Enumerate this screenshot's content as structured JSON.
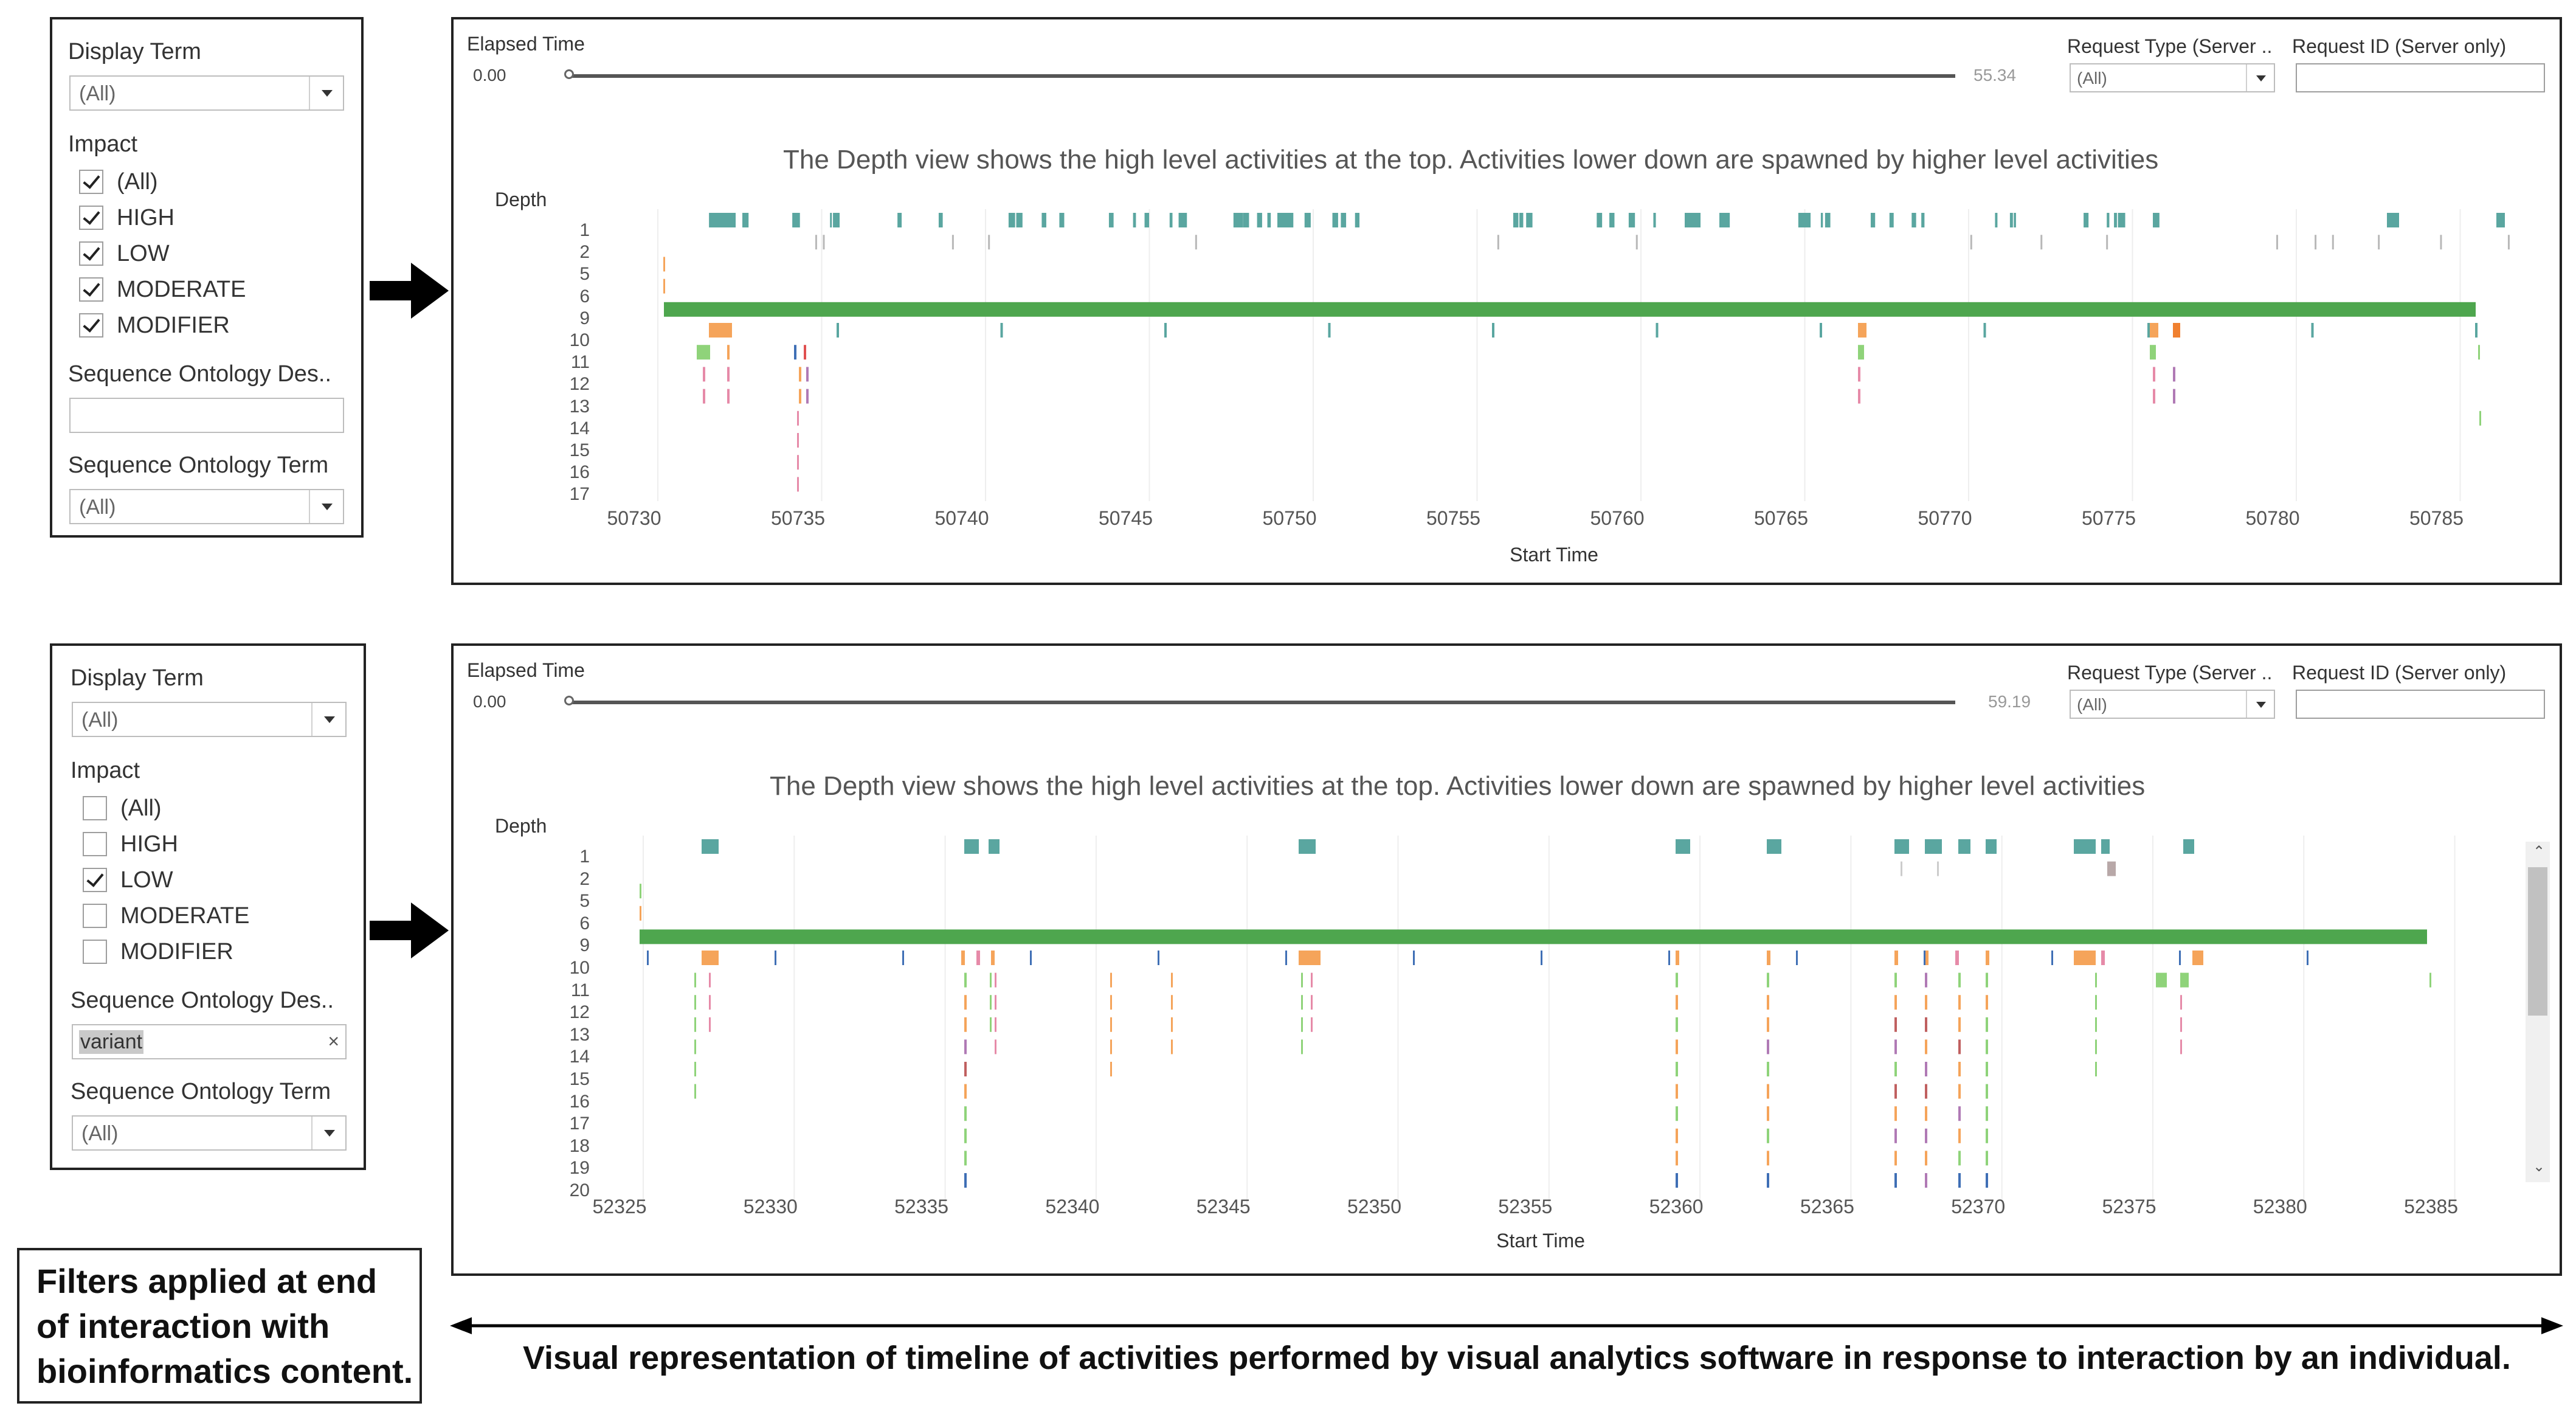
{
  "filters": [
    {
      "display_term_label": "Display Term",
      "display_term_value": "(All)",
      "impact_label": "Impact",
      "impact_options": [
        {
          "label": "(All)",
          "checked": true
        },
        {
          "label": "HIGH",
          "checked": true
        },
        {
          "label": "LOW",
          "checked": true
        },
        {
          "label": "MODERATE",
          "checked": true
        },
        {
          "label": "MODIFIER",
          "checked": true
        }
      ],
      "so_desc_label": "Sequence Ontology Des..",
      "so_desc_value": "",
      "so_term_label": "Sequence Ontology Term",
      "so_term_value": "(All)"
    },
    {
      "display_term_label": "Display Term",
      "display_term_value": "(All)",
      "impact_label": "Impact",
      "impact_options": [
        {
          "label": "(All)",
          "checked": false
        },
        {
          "label": "HIGH",
          "checked": false
        },
        {
          "label": "LOW",
          "checked": true
        },
        {
          "label": "MODERATE",
          "checked": false
        },
        {
          "label": "MODIFIER",
          "checked": false
        }
      ],
      "so_desc_label": "Sequence Ontology Des..",
      "so_desc_value": "variant",
      "so_desc_clear": "×",
      "so_term_label": "Sequence Ontology Term",
      "so_term_value": "(All)"
    }
  ],
  "dashboards": [
    {
      "elapsed_label": "Elapsed Time",
      "elapsed_min": "0.00",
      "elapsed_max": "55.34",
      "request_type_label": "Request Type (Server ..",
      "request_type_value": "(All)",
      "request_id_label": "Request ID (Server only)",
      "subtitle": "The Depth view shows the high level activities at the top. Activities lower down are spawned by higher level activities",
      "depth_title": "Depth",
      "depth_labels": [
        "1",
        "2",
        "5",
        "6",
        "9",
        "10",
        "11",
        "12",
        "13",
        "14",
        "15",
        "16",
        "17"
      ],
      "x_title": "Start Time",
      "x_ticks": [
        "50730",
        "50735",
        "50740",
        "50745",
        "50750",
        "50755",
        "50760",
        "50765",
        "50770",
        "50775",
        "50780",
        "50785"
      ]
    },
    {
      "elapsed_label": "Elapsed Time",
      "elapsed_min": "0.00",
      "elapsed_max": "59.19",
      "request_type_label": "Request Type (Server ..",
      "request_type_value": "(All)",
      "request_id_label": "Request ID (Server only)",
      "subtitle": "The Depth view shows the high level activities at the top. Activities lower down are spawned by higher level activities",
      "depth_title": "Depth",
      "depth_labels": [
        "1",
        "2",
        "5",
        "6",
        "9",
        "10",
        "11",
        "12",
        "13",
        "14",
        "15",
        "16",
        "17",
        "18",
        "19",
        "20"
      ],
      "x_title": "Start Time",
      "x_ticks": [
        "52325",
        "52330",
        "52335",
        "52340",
        "52345",
        "52350",
        "52355",
        "52360",
        "52365",
        "52370",
        "52375",
        "52380",
        "52385"
      ],
      "scroll_up": "⌃",
      "scroll_down": "⌄"
    }
  ],
  "caption_left": "Filters applied at end of interaction with bioinformatics content.",
  "caption_bottom": "Visual representation of timeline of activities performed by visual analytics software in response to interaction by an individual.",
  "colors": {
    "teal": "#5aa6a0",
    "green_bar": "#4ea64e",
    "orange": "#f5a45a",
    "pink": "#e68aa8",
    "purple": "#b07ab5",
    "light_green": "#8fd37a",
    "blue": "#3f6fb5"
  }
}
